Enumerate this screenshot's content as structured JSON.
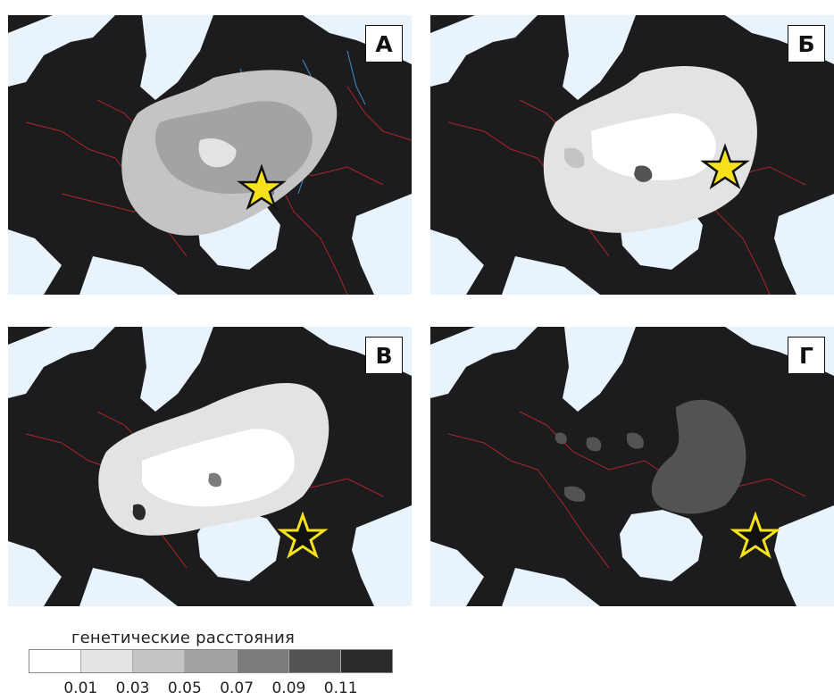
{
  "panels": [
    {
      "id": "a",
      "label": "А"
    },
    {
      "id": "b",
      "label": "Б"
    },
    {
      "id": "c",
      "label": "В"
    },
    {
      "id": "d",
      "label": "Г"
    }
  ],
  "legend": {
    "title": "генетические расстояния",
    "ticks": [
      "0.01",
      "0.03",
      "0.05",
      "0.07",
      "0.09",
      "0.11"
    ],
    "colors": [
      "#ffffff",
      "#e3e3e3",
      "#c4c4c4",
      "#a3a3a3",
      "#7c7c7c",
      "#535353",
      "#2a2a2a"
    ]
  },
  "colors": {
    "land": "#1c1c1e",
    "sea": "#e9f3fb",
    "borders": "#c0262b",
    "rivers": "#3c8fd4",
    "star_fill": "#f5e21c",
    "star_stroke": "#111111"
  }
}
